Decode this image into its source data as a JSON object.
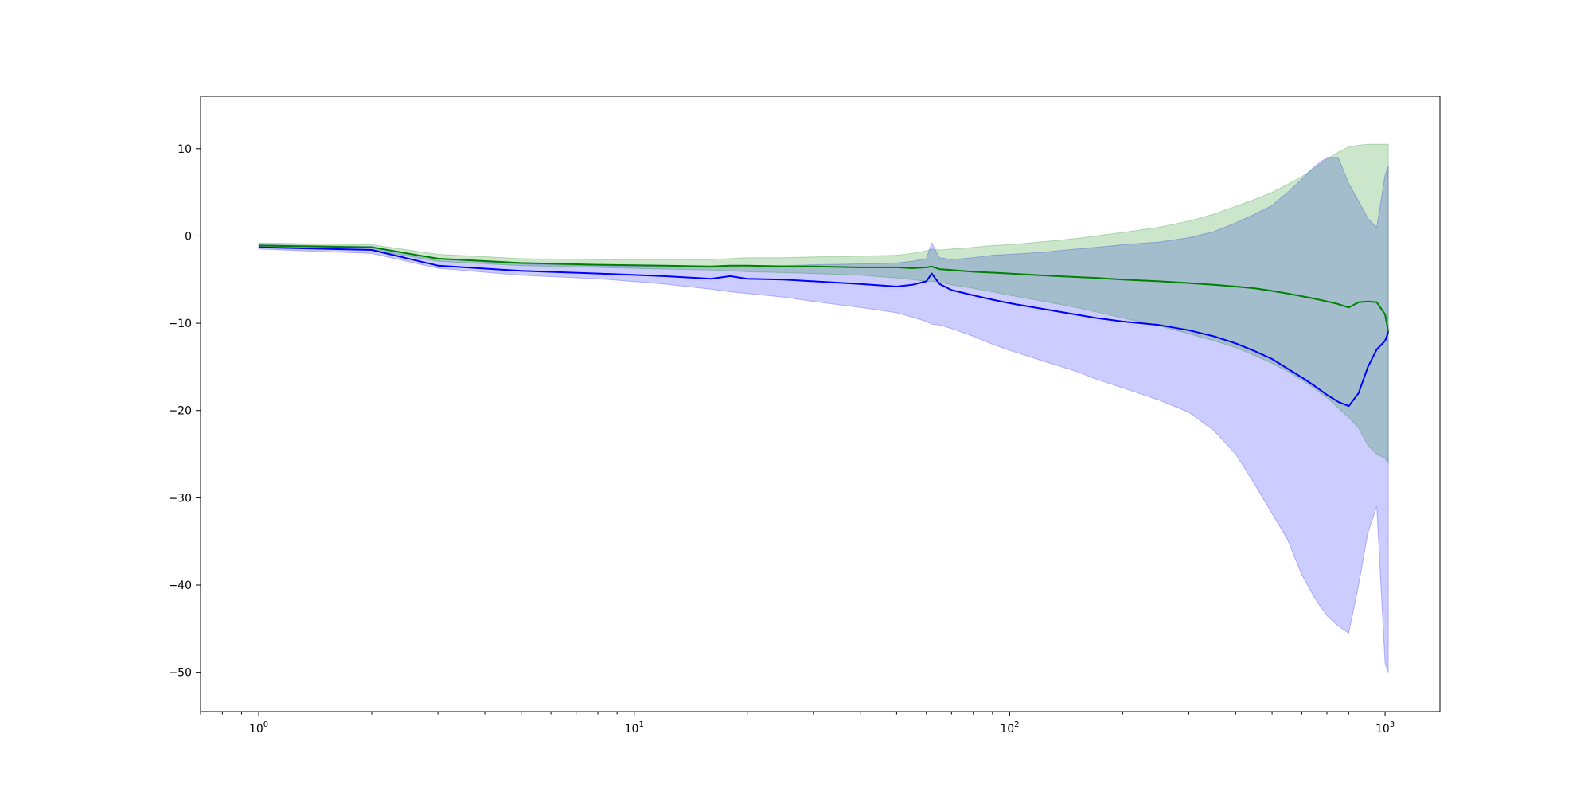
{
  "chart_data": {
    "type": "line",
    "title": "",
    "xlabel": "",
    "ylabel": "",
    "xscale": "log",
    "xlim": [
      0.7,
      1400
    ],
    "ylim": [
      -54.5,
      16
    ],
    "grid": false,
    "legend": "none",
    "x_tick_labels": [
      {
        "value": 1,
        "mantissa": "10",
        "exp": "0"
      },
      {
        "value": 10,
        "mantissa": "10",
        "exp": "1"
      },
      {
        "value": 100,
        "mantissa": "10",
        "exp": "2"
      },
      {
        "value": 1000,
        "mantissa": "10",
        "exp": "3"
      }
    ],
    "y_ticks": [
      10,
      0,
      -10,
      -20,
      -30,
      -40,
      -50
    ],
    "y_tick_labels": [
      "10",
      "0",
      "−10",
      "−20",
      "−30",
      "−40",
      "−50"
    ],
    "series": [
      {
        "color": "#0000ff",
        "band_color": "#0000ff",
        "band_opacity": 0.2,
        "x": [
          1,
          2,
          3,
          5,
          8,
          12,
          16,
          18,
          20,
          25,
          30,
          40,
          50,
          55,
          60,
          62,
          65,
          70,
          80,
          90,
          100,
          120,
          150,
          170,
          200,
          250,
          300,
          350,
          400,
          450,
          500,
          550,
          600,
          650,
          700,
          750,
          800,
          850,
          900,
          950,
          1000,
          1020
        ],
        "mean": [
          -1.3,
          -1.6,
          -3.4,
          -4.0,
          -4.3,
          -4.6,
          -4.9,
          -4.6,
          -4.9,
          -5.0,
          -5.2,
          -5.5,
          -5.8,
          -5.6,
          -5.2,
          -4.3,
          -5.5,
          -6.2,
          -6.8,
          -7.3,
          -7.7,
          -8.3,
          -9.0,
          -9.4,
          -9.8,
          -10.2,
          -10.8,
          -11.5,
          -12.3,
          -13.2,
          -14.1,
          -15.2,
          -16.2,
          -17.2,
          -18.2,
          -19.0,
          -19.5,
          -18.0,
          -15.0,
          -13.0,
          -12.0,
          -11.0
        ],
        "lower": [
          -1.5,
          -2.0,
          -3.7,
          -4.5,
          -4.9,
          -5.5,
          -6.1,
          -6.4,
          -6.6,
          -7.0,
          -7.5,
          -8.2,
          -8.8,
          -9.3,
          -9.8,
          -10.1,
          -10.2,
          -10.6,
          -11.5,
          -12.4,
          -13.1,
          -14.2,
          -15.5,
          -16.4,
          -17.4,
          -18.8,
          -20.2,
          -22.3,
          -25.0,
          -28.5,
          -31.8,
          -34.8,
          -38.8,
          -41.5,
          -43.5,
          -44.7,
          -45.5,
          -40.0,
          -34.0,
          -31.0,
          -49.0,
          -50.0
        ],
        "upper": [
          -1.0,
          -1.2,
          -2.6,
          -3.2,
          -3.4,
          -3.5,
          -3.6,
          -3.4,
          -3.4,
          -3.4,
          -3.3,
          -3.2,
          -3.1,
          -2.9,
          -2.6,
          -0.8,
          -2.5,
          -2.7,
          -2.5,
          -2.2,
          -2.1,
          -1.9,
          -1.5,
          -1.3,
          -1.0,
          -0.7,
          -0.2,
          0.5,
          1.5,
          2.5,
          3.5,
          5.0,
          6.5,
          8.0,
          9.0,
          9.0,
          6.0,
          4.0,
          2.0,
          1.0,
          7.0,
          8.0
        ]
      },
      {
        "color": "#008000",
        "band_color": "#008000",
        "band_opacity": 0.2,
        "x": [
          1,
          2,
          3,
          5,
          8,
          12,
          16,
          18,
          20,
          25,
          30,
          40,
          50,
          55,
          60,
          62,
          65,
          70,
          80,
          90,
          100,
          120,
          150,
          170,
          200,
          250,
          300,
          350,
          400,
          450,
          500,
          550,
          600,
          650,
          700,
          750,
          800,
          850,
          900,
          950,
          1000,
          1020
        ],
        "mean": [
          -1.1,
          -1.3,
          -2.6,
          -3.1,
          -3.3,
          -3.4,
          -3.5,
          -3.4,
          -3.4,
          -3.5,
          -3.5,
          -3.6,
          -3.6,
          -3.7,
          -3.6,
          -3.5,
          -3.8,
          -3.9,
          -4.1,
          -4.2,
          -4.3,
          -4.5,
          -4.7,
          -4.8,
          -5.0,
          -5.2,
          -5.4,
          -5.6,
          -5.8,
          -6.0,
          -6.3,
          -6.6,
          -6.9,
          -7.2,
          -7.5,
          -7.8,
          -8.2,
          -7.6,
          -7.5,
          -7.6,
          -9.0,
          -11.0
        ],
        "lower": [
          -1.3,
          -1.6,
          -2.9,
          -3.4,
          -3.6,
          -3.8,
          -3.9,
          -4.0,
          -4.1,
          -4.2,
          -4.3,
          -4.5,
          -4.8,
          -5.0,
          -5.2,
          -5.2,
          -5.3,
          -5.6,
          -6.0,
          -6.4,
          -6.8,
          -7.4,
          -8.2,
          -8.7,
          -9.4,
          -10.3,
          -11.2,
          -12.0,
          -12.8,
          -13.7,
          -14.6,
          -15.5,
          -16.5,
          -17.5,
          -18.5,
          -19.7,
          -20.8,
          -22.0,
          -24.0,
          -25.0,
          -25.5,
          -26.0
        ],
        "upper": [
          -0.8,
          -1.0,
          -2.1,
          -2.6,
          -2.7,
          -2.7,
          -2.7,
          -2.6,
          -2.5,
          -2.5,
          -2.4,
          -2.3,
          -2.2,
          -2.0,
          -1.7,
          -1.5,
          -1.6,
          -1.5,
          -1.3,
          -1.1,
          -1.0,
          -0.7,
          -0.3,
          0.0,
          0.4,
          1.0,
          1.7,
          2.5,
          3.4,
          4.2,
          5.0,
          5.9,
          6.8,
          7.8,
          8.8,
          9.6,
          10.2,
          10.4,
          10.5,
          10.5,
          10.5,
          10.5
        ]
      }
    ]
  }
}
